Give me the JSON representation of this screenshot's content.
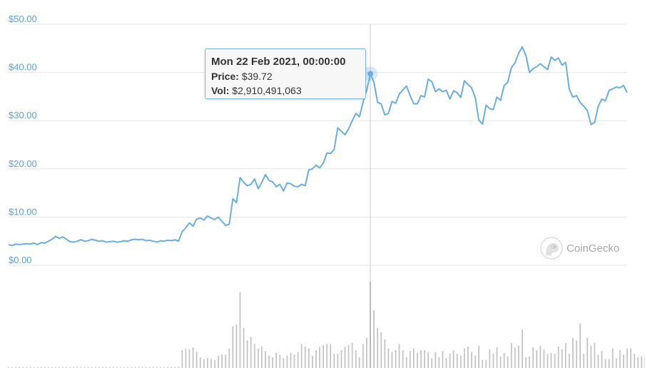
{
  "chart_data": {
    "type": "line",
    "y_axis": {
      "ticks": [
        "$50.00",
        "$40.00",
        "$30.00",
        "$20.00",
        "$10.00",
        "$0.00"
      ],
      "range": [
        0,
        50
      ]
    },
    "price": [
      4.3,
      4.1,
      4.4,
      4.3,
      4.4,
      4.5,
      4.4,
      4.6,
      4.3,
      4.7,
      4.6,
      5.0,
      5.4,
      6.0,
      5.6,
      5.9,
      5.4,
      4.9,
      4.8,
      5.0,
      5.3,
      5.0,
      5.1,
      5.4,
      5.2,
      5.0,
      5.1,
      4.8,
      4.9,
      5.0,
      4.8,
      4.9,
      5.1,
      5.0,
      5.3,
      5.4,
      5.3,
      5.4,
      5.1,
      5.2,
      5.0,
      4.8,
      5.1,
      5.0,
      5.2,
      5.1,
      5.3,
      5.0,
      7.0,
      7.8,
      8.8,
      8.1,
      9.6,
      9.8,
      9.4,
      10.2,
      9.8,
      9.5,
      10.0,
      9.1,
      8.3,
      8.5,
      13.8,
      13.0,
      18.2,
      17.2,
      16.5,
      16.8,
      17.9,
      15.9,
      17.2,
      18.8,
      17.6,
      17.3,
      16.3,
      16.8,
      15.4,
      17.1,
      16.9,
      16.4,
      16.3,
      16.8,
      16.5,
      19.8,
      20.0,
      20.8,
      20.2,
      21.2,
      23.3,
      23.2,
      24.0,
      28.5,
      27.8,
      27.1,
      28.3,
      30.0,
      31.5,
      30.8,
      33.9,
      36.3,
      39.72,
      38.0,
      33.8,
      33.5,
      31.2,
      31.5,
      34.0,
      33.6,
      35.5,
      36.4,
      37.2,
      35.2,
      33.5,
      33.5,
      35.2,
      34.9,
      38.6,
      38.1,
      36.0,
      36.6,
      36.0,
      36.3,
      34.5,
      36.2,
      35.8,
      34.8,
      38.3,
      37.5,
      36.8,
      34.8,
      30.1,
      29.3,
      33.2,
      32.5,
      32.3,
      34.9,
      34.2,
      37.3,
      38.0,
      41.0,
      42.0,
      44.0,
      45.3,
      43.5,
      40.0,
      40.8,
      41.2,
      41.8,
      41.2,
      40.6,
      43.2,
      42.5,
      43.0,
      41.5,
      42.1,
      36.5,
      34.9,
      35.2,
      33.8,
      33.0,
      32.1,
      29.2,
      29.6,
      33.0,
      34.5,
      34.1,
      36.3,
      36.6,
      37.0,
      36.8,
      37.3,
      35.8
    ],
    "volume": [
      1,
      1,
      1,
      1,
      1,
      1,
      1,
      1,
      1,
      1,
      1,
      1,
      1,
      1,
      1,
      1,
      1,
      1,
      1,
      1,
      1,
      1,
      1,
      1,
      1,
      1,
      1,
      1,
      1,
      1,
      1,
      1,
      1,
      1,
      1,
      1,
      1,
      1,
      1,
      1,
      1,
      1,
      1,
      1,
      1,
      1,
      1,
      1,
      20,
      22,
      21,
      23,
      18,
      12,
      10,
      11,
      10,
      9,
      14,
      15,
      15,
      22,
      47,
      49,
      85,
      45,
      31,
      35,
      27,
      22,
      24,
      19,
      14,
      12,
      17,
      15,
      11,
      14,
      17,
      15,
      18,
      27,
      24,
      22,
      14,
      20,
      24,
      26,
      27,
      27,
      16,
      16,
      20,
      24,
      26,
      28,
      20,
      12,
      27,
      34,
      97,
      65,
      45,
      40,
      32,
      22,
      18,
      20,
      27,
      20,
      12,
      19,
      22,
      17,
      20,
      20,
      18,
      11,
      18,
      12,
      19,
      11,
      16,
      20,
      16,
      14,
      22,
      24,
      18,
      14,
      25,
      9,
      9,
      21,
      16,
      23,
      13,
      17,
      13,
      28,
      23,
      25,
      43,
      12,
      13,
      23,
      20,
      25,
      21,
      16,
      17,
      16,
      24,
      21,
      28,
      16,
      34,
      31,
      50,
      16,
      34,
      25,
      28,
      15,
      19,
      10,
      10,
      22,
      11,
      20,
      15,
      22,
      22,
      16,
      12,
      13,
      15,
      16,
      23,
      19
    ],
    "hover_index": 100,
    "tooltip": {
      "date": "Mon 22 Feb 2021, 00:00:00",
      "price_label": "Price:",
      "price_value": "$39.72",
      "vol_label": "Vol:",
      "vol_value": "$2,910,491,063"
    },
    "watermark": "CoinGecko",
    "colors": {
      "line": "#6aaee0",
      "tick_text": "#5aa0d8",
      "grid": "#e6e6e6",
      "volume_bar": "#c4c4c4",
      "volume_bar_highlight": "#9a9a9a",
      "crosshair": "#c8c8c8"
    }
  }
}
